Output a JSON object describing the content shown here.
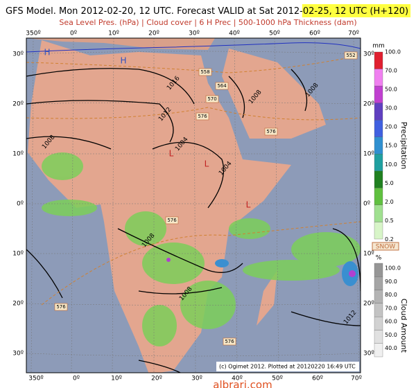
{
  "header": {
    "title_main": "GFS Model. Mon 2012-02-20, 12 UTC. Forecast VALID at Sat 2012-",
    "title_highlight": "02-25, 12 UTC (H+120)",
    "subtitle": "Sea Level Pres. (hPa) | Cloud cover | 6 H Prec | 500-1000 hPa Thickness (dam)"
  },
  "map": {
    "lon_labels": [
      "350º",
      "0º",
      "10º",
      "20º",
      "30º",
      "40º",
      "50º",
      "60º",
      "70º"
    ],
    "lat_labels": [
      "30º",
      "20º",
      "10º",
      "0º",
      "10º",
      "20º",
      "30º"
    ],
    "isobars": [
      "1016",
      "1012",
      "1004",
      "1008",
      "1004",
      "1008",
      "1008",
      "1008",
      "1008",
      "1012"
    ],
    "thickness": [
      "552",
      "558",
      "564",
      "570",
      "576",
      "576",
      "576",
      "576",
      "576"
    ],
    "pressure_centers": [
      "H",
      "H",
      "L",
      "L",
      "L"
    ],
    "credit": "(c) Ogimet 2012. Plotted at 20120220 16:49 UTC"
  },
  "precip_legend": {
    "unit": "mm",
    "title": "Precipitation",
    "snow": "SNOW",
    "labels": [
      "100.0",
      "70.0",
      "50.0",
      "30.0",
      "20.0",
      "15.0",
      "10.0",
      "5.0",
      "2.0",
      "0.5",
      "0.2"
    ]
  },
  "cloud_legend": {
    "unit": "%",
    "title": "Cloud Amount",
    "labels": [
      "100.0",
      "90.0",
      "80.0",
      "70.0",
      "60.0",
      "50.0",
      "40.0"
    ]
  },
  "watermark": "albrari.com"
}
